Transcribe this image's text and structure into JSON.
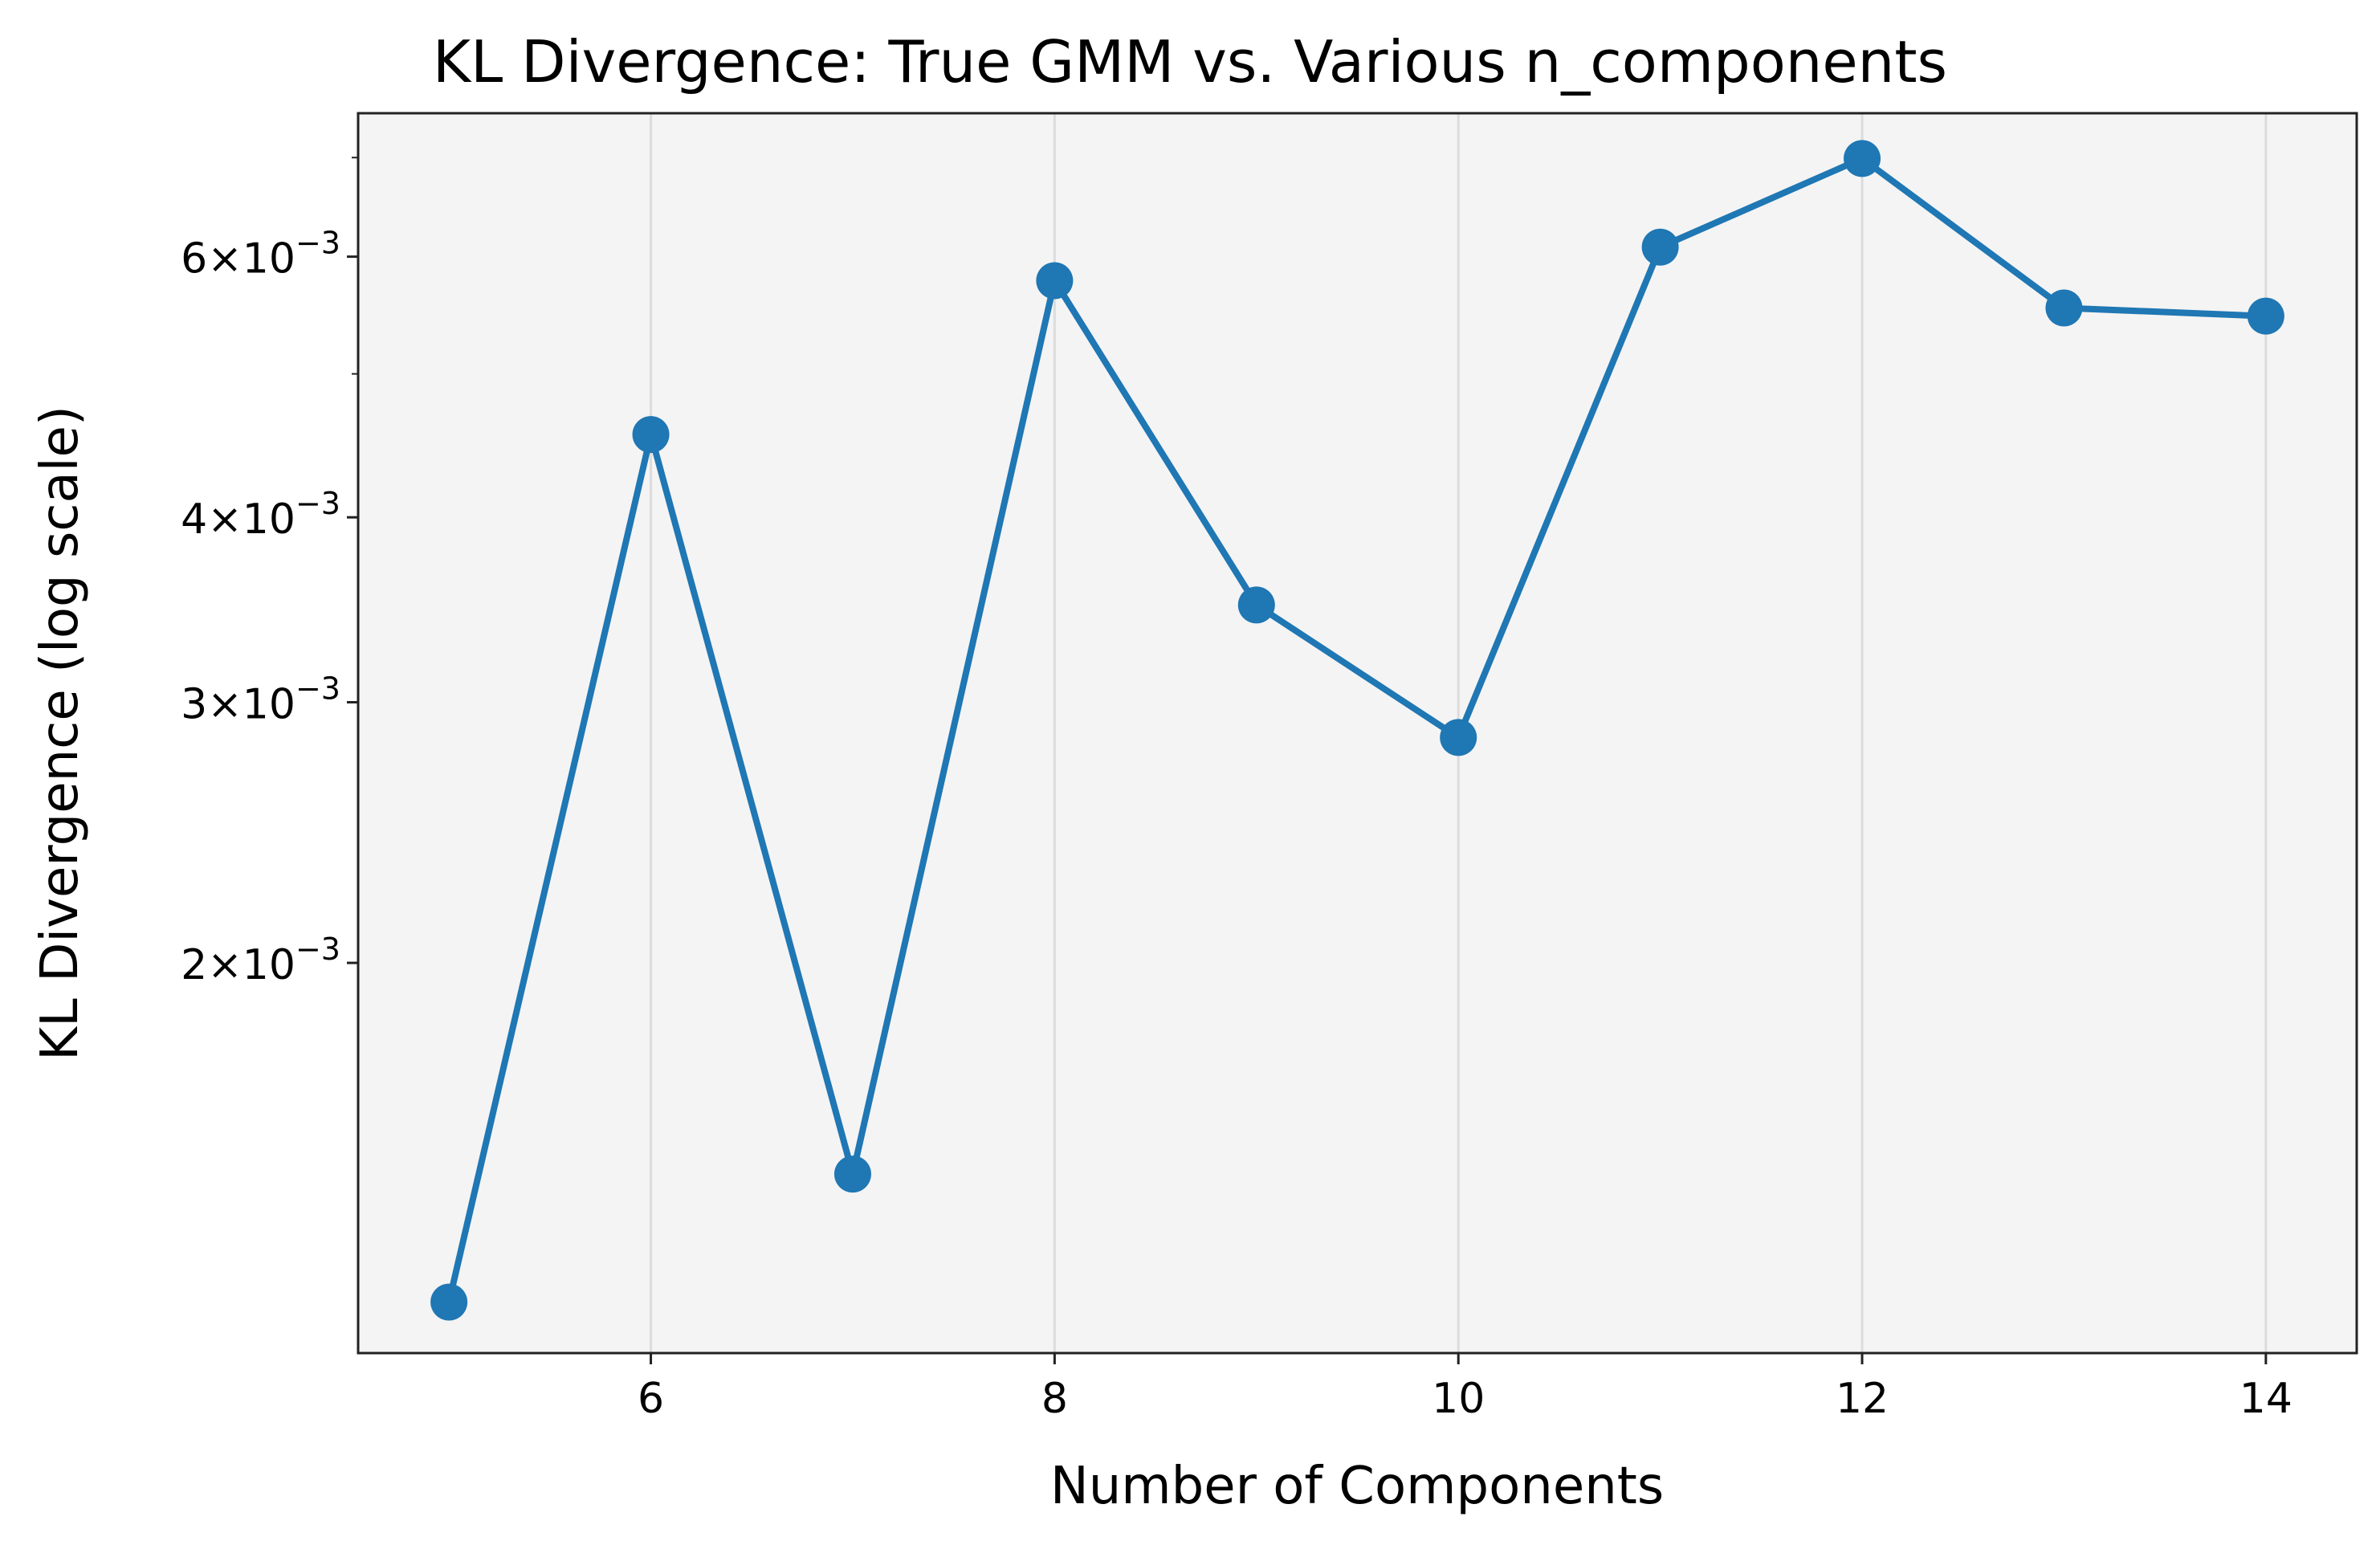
{
  "chart_data": {
    "type": "line",
    "title": "KL Divergence: True GMM vs. Various n_components",
    "xlabel": "Number of Components",
    "ylabel": "KL Divergence (log scale)",
    "yscale": "log",
    "x": [
      5,
      6,
      7,
      8,
      9,
      10,
      11,
      12,
      13,
      14
    ],
    "series": [
      {
        "values": [
          0.00118,
          0.00455,
          0.00144,
          0.00578,
          0.00349,
          0.00284,
          0.00609,
          0.00699,
          0.00554,
          0.00547
        ],
        "color": "#1f77b4",
        "marker": "circle"
      }
    ],
    "xlim": [
      4.55,
      14.45
    ],
    "ylim": [
      0.00109,
      0.0075
    ],
    "x_ticks": [
      {
        "value": 6,
        "label": "6"
      },
      {
        "value": 8,
        "label": "8"
      },
      {
        "value": 10,
        "label": "10"
      },
      {
        "value": 12,
        "label": "12"
      },
      {
        "value": 14,
        "label": "14"
      }
    ],
    "y_ticks": [
      {
        "value": 0.002,
        "mantissa": "2",
        "times": "×",
        "base": "10",
        "exponent": "−3"
      },
      {
        "value": 0.003,
        "mantissa": "3",
        "times": "×",
        "base": "10",
        "exponent": "−3"
      },
      {
        "value": 0.004,
        "mantissa": "4",
        "times": "×",
        "base": "10",
        "exponent": "−3"
      },
      {
        "value": 0.006,
        "mantissa": "6",
        "times": "×",
        "base": "10",
        "exponent": "−3"
      }
    ],
    "y_minor_ticks": [
      0.005,
      0.007
    ],
    "grid": "x-major",
    "plot_background": "#f4f4f4",
    "legend": "none"
  }
}
